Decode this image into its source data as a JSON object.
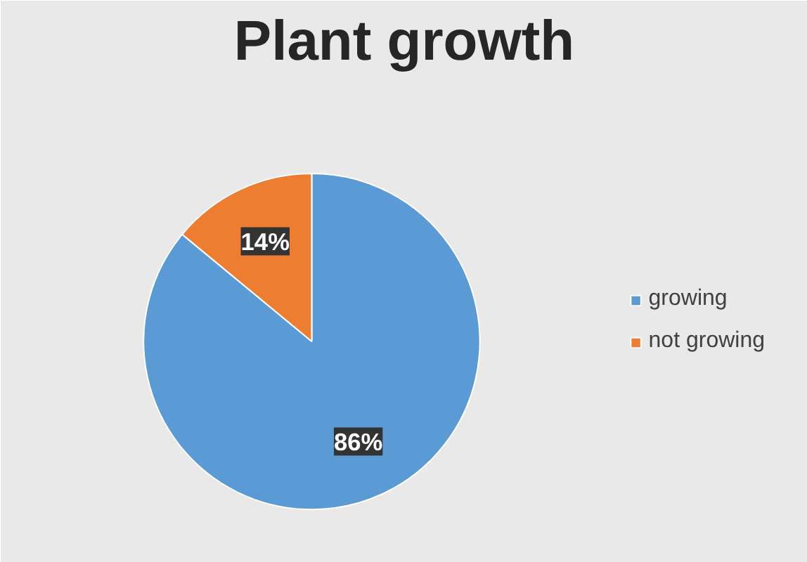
{
  "chart_data": {
    "type": "pie",
    "title": "Plant growth",
    "categories": [
      "growing",
      "not growing"
    ],
    "values": [
      86,
      14
    ],
    "colors": [
      "#5b9bd5",
      "#ed7d31"
    ],
    "value_labels": [
      "86%",
      "14%"
    ],
    "legend": "right"
  }
}
